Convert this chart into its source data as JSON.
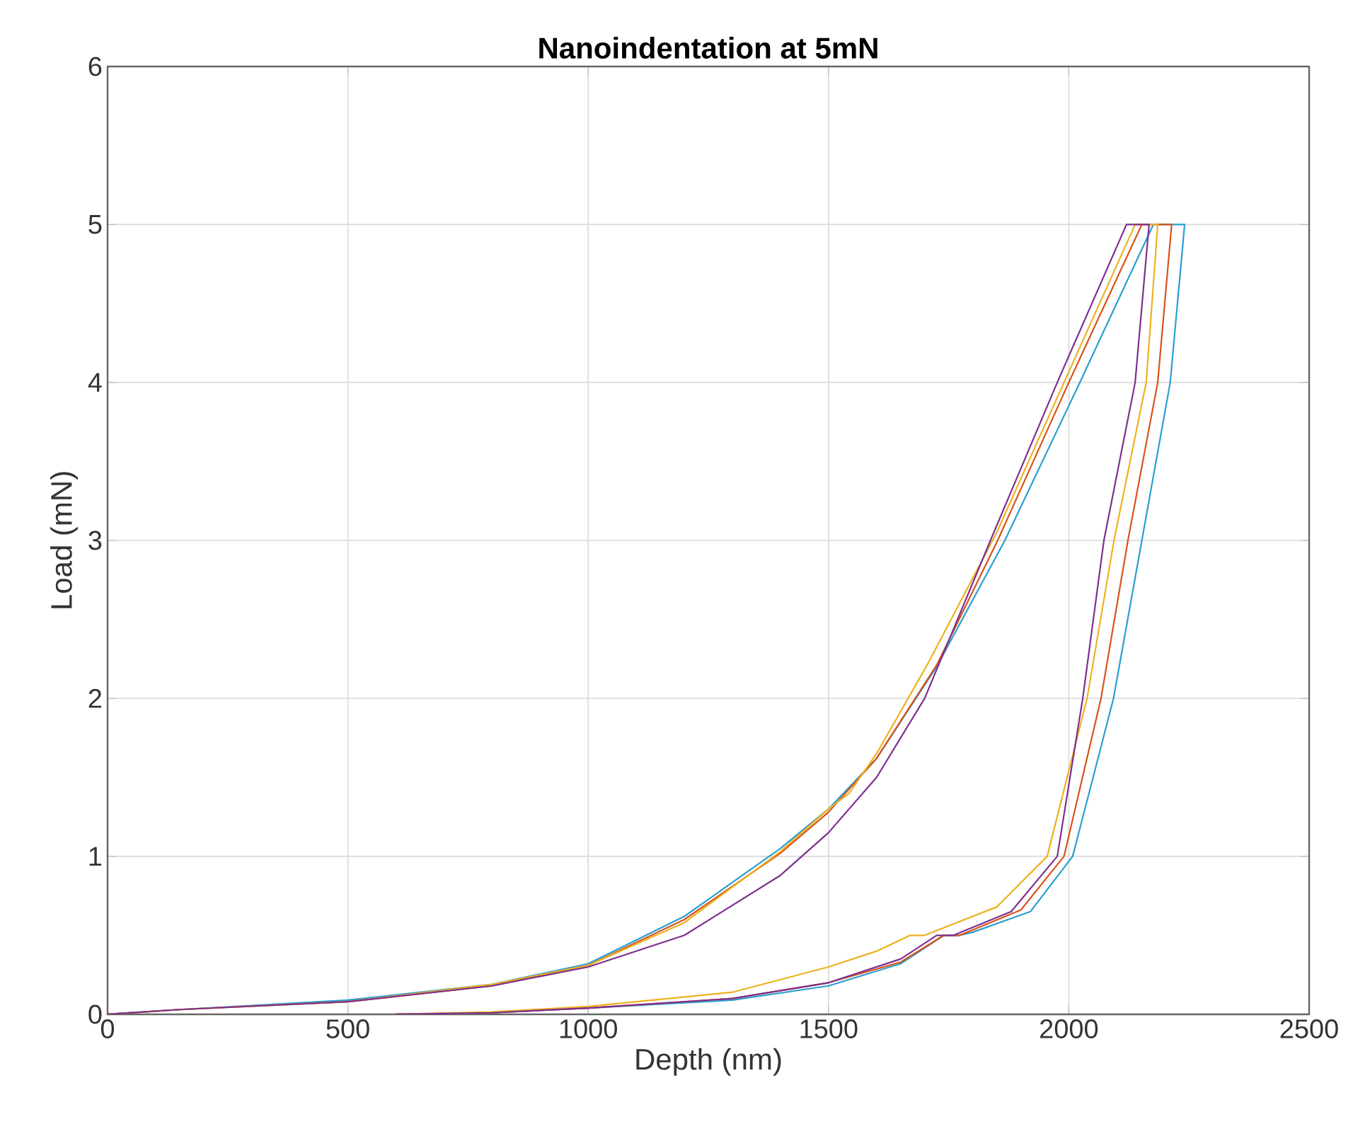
{
  "chart_data": {
    "type": "line",
    "title": "Nanoindentation at 5mN",
    "xlabel": "Depth (nm)",
    "ylabel": "Load (mN)",
    "xlim": [
      0,
      2500
    ],
    "ylim": [
      0,
      6
    ],
    "xticks": [
      0,
      500,
      1000,
      1500,
      2000,
      2500
    ],
    "yticks": [
      0,
      1,
      2,
      3,
      4,
      5,
      6
    ],
    "grid": true,
    "series": [
      {
        "color": "#2a9fd0",
        "x": [
          0,
          150,
          500,
          800,
          1000,
          1200,
          1400,
          1500,
          1600,
          1725,
          1867,
          2023,
          2176,
          2241,
          2211,
          2152,
          2093,
          2008,
          1920,
          1800,
          1773,
          1740,
          1650,
          1500,
          1300,
          1000,
          800,
          600
        ],
        "values": [
          0,
          0.03,
          0.09,
          0.19,
          0.32,
          0.62,
          1.05,
          1.3,
          1.62,
          2.2,
          3.0,
          4.0,
          5.0,
          5.0,
          4.0,
          3.0,
          2.0,
          1.0,
          0.65,
          0.52,
          0.5,
          0.5,
          0.32,
          0.18,
          0.09,
          0.04,
          0.01,
          0
        ]
      },
      {
        "color": "#d95319",
        "x": [
          0,
          150,
          500,
          800,
          1000,
          1200,
          1400,
          1500,
          1600,
          1725,
          1852,
          2000,
          2152,
          2214,
          2185,
          2123,
          2067,
          1990,
          1900,
          1773,
          1740,
          1650,
          1500,
          1300,
          1000,
          800,
          600
        ],
        "values": [
          0,
          0.03,
          0.08,
          0.18,
          0.31,
          0.6,
          1.02,
          1.28,
          1.62,
          2.21,
          3.0,
          4.0,
          5.0,
          5.0,
          4.0,
          3.0,
          2.0,
          1.0,
          0.66,
          0.5,
          0.5,
          0.33,
          0.2,
          0.1,
          0.04,
          0.01,
          0
        ]
      },
      {
        "color": "#edb120",
        "x": [
          0,
          150,
          500,
          800,
          1000,
          1200,
          1400,
          1500,
          1543,
          1600,
          1705,
          1850,
          1990,
          2138,
          2185,
          2161,
          2094,
          2038,
          1955,
          1850,
          1700,
          1670,
          1600,
          1500,
          1300,
          1000,
          800,
          600
        ],
        "values": [
          0,
          0.03,
          0.08,
          0.19,
          0.31,
          0.58,
          1.03,
          1.3,
          1.4,
          1.65,
          2.21,
          3.05,
          4.0,
          5.0,
          5.0,
          4.0,
          3.0,
          2.0,
          1.0,
          0.68,
          0.5,
          0.5,
          0.4,
          0.3,
          0.14,
          0.05,
          0.015,
          0
        ]
      },
      {
        "color": "#7e2f8e",
        "x": [
          0,
          150,
          500,
          800,
          1000,
          1200,
          1400,
          1500,
          1600,
          1700,
          1837,
          1976,
          2120,
          2167,
          2138,
          2073,
          2029,
          1976,
          1880,
          1760,
          1725,
          1650,
          1500,
          1300,
          1000,
          800,
          600
        ],
        "values": [
          0,
          0.03,
          0.08,
          0.18,
          0.3,
          0.5,
          0.88,
          1.15,
          1.5,
          2.0,
          3.0,
          4.0,
          5.0,
          5.0,
          4.0,
          3.0,
          2.0,
          1.0,
          0.65,
          0.5,
          0.5,
          0.35,
          0.2,
          0.1,
          0.04,
          0.01,
          0
        ]
      }
    ]
  }
}
